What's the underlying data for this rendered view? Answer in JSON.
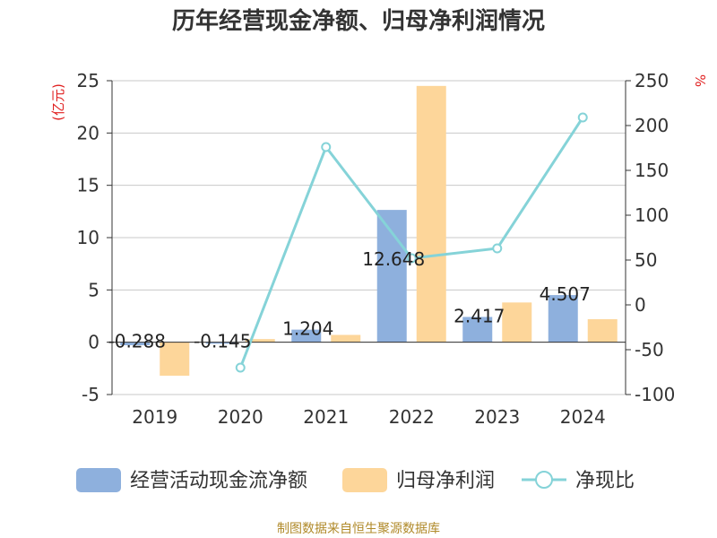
{
  "colors": {
    "bar1": "#8eb0dd",
    "bar2": "#fdd69a",
    "line": "#85d3d8",
    "title": "#333333",
    "unit": "#e02020",
    "source": "#b08a2a"
  },
  "chart_data": {
    "type": "bar",
    "title": "历年经营现金净额、归母净利润情况",
    "categories": [
      "2019",
      "2020",
      "2021",
      "2022",
      "2023",
      "2024"
    ],
    "series": [
      {
        "name": "经营活动现金流净额",
        "type": "bar",
        "axis": "left",
        "values": [
          -0.288,
          -0.145,
          1.204,
          12.648,
          2.417,
          4.507
        ],
        "labels": [
          "-0.288",
          "-0.145",
          "1.204",
          "12.648",
          "2.417",
          "4.507"
        ]
      },
      {
        "name": "归母净利润",
        "type": "bar",
        "axis": "left",
        "values": [
          -3.2,
          0.3,
          0.7,
          24.5,
          3.8,
          2.2
        ]
      },
      {
        "name": "净现比",
        "type": "line",
        "axis": "right",
        "values": [
          null,
          -70,
          176,
          52,
          63,
          209
        ]
      }
    ],
    "ylim": [
      -5,
      25
    ],
    "yticks": [
      "-5",
      "0",
      "5",
      "10",
      "15",
      "20",
      "25"
    ],
    "y2lim": [
      -100,
      250
    ],
    "y2ticks": [
      "-100",
      "-50",
      "0",
      "50",
      "100",
      "150",
      "200",
      "250"
    ],
    "ylabel": "(亿元)",
    "y2label": "%",
    "legend_position": "bottom",
    "source": "制图数据来自恒生聚源数据库"
  }
}
